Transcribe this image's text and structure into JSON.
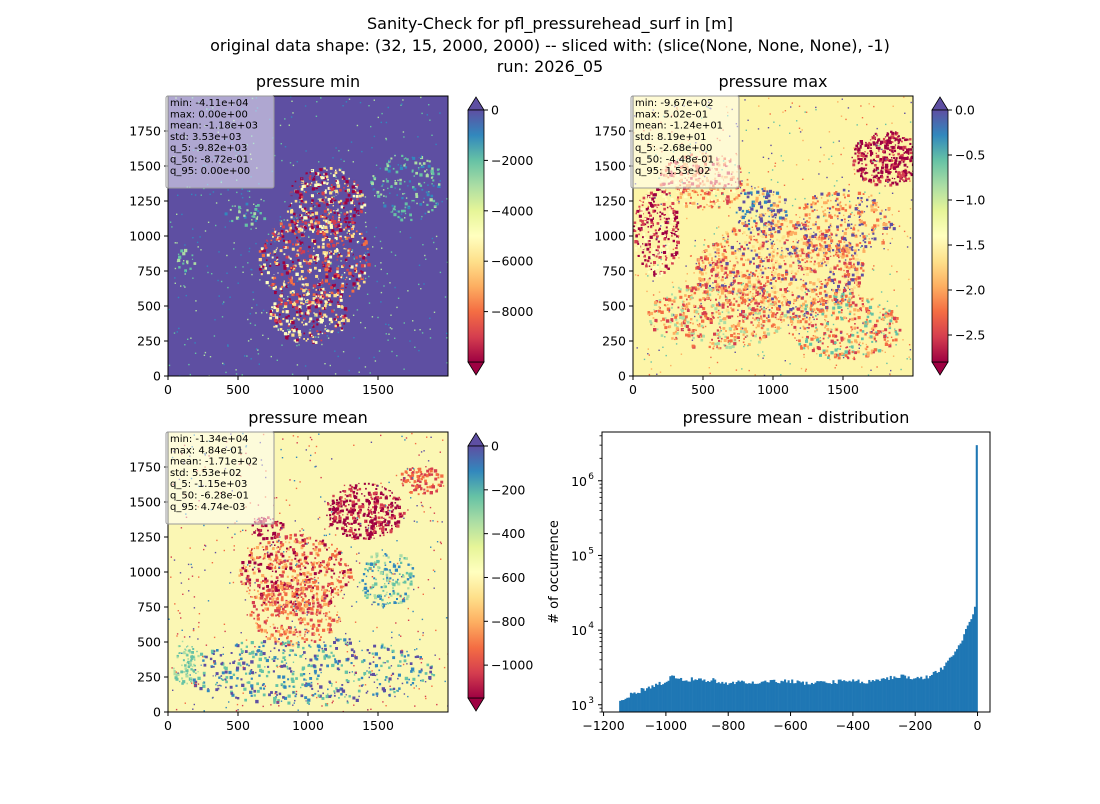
{
  "figure": {
    "title_lines": [
      "Sanity-Check for pfl_pressurehead_surf in [m]",
      "original data shape: (32, 15, 2000, 2000) -- sliced with: (slice(None, None, None), -1)",
      "run: 2026_05"
    ]
  },
  "chart_data": [
    {
      "type": "heatmap",
      "title": "pressure min",
      "xlim": [
        0,
        2000
      ],
      "ylim": [
        0,
        2000
      ],
      "xticks": [
        0,
        500,
        1000,
        1500
      ],
      "yticks": [
        0,
        250,
        500,
        750,
        1000,
        1250,
        1500,
        1750
      ],
      "colorbar": {
        "cmap": "Spectral",
        "range": [
          -10000,
          0
        ],
        "ticks": [
          0,
          -2000,
          -4000,
          -6000,
          -8000
        ],
        "ticklabels": [
          "0",
          "−2000",
          "−4000",
          "−6000",
          "−8000"
        ],
        "extend_top": true,
        "extend_bottom": true
      },
      "stats": [
        "min: -4.11e+04",
        "max: 0.00e+00",
        "mean: -1.18e+03",
        "std: 3.53e+03",
        "q_5: -9.82e+03",
        "q_50: -8.72e-01",
        "q_95: 0.00e+00"
      ],
      "background_color": "#5e4fa2"
    },
    {
      "type": "heatmap",
      "title": "pressure max",
      "xlim": [
        0,
        2000
      ],
      "ylim": [
        0,
        2000
      ],
      "xticks": [
        0,
        500,
        1000,
        1500
      ],
      "yticks": [
        0,
        250,
        500,
        750,
        1000,
        1250,
        1500,
        1750
      ],
      "colorbar": {
        "cmap": "Spectral",
        "range": [
          -2.8,
          0
        ],
        "ticks": [
          0.0,
          -0.5,
          -1.0,
          -1.5,
          -2.0,
          -2.5
        ],
        "ticklabels": [
          "0.0",
          "−0.5",
          "−1.0",
          "−1.5",
          "−2.0",
          "−2.5"
        ],
        "extend_top": true,
        "extend_bottom": true
      },
      "stats": [
        "min: -9.67e+02",
        "max: 5.02e-01",
        "mean: -1.24e+01",
        "std: 8.19e+01",
        "q_5: -2.68e+00",
        "q_50: -4.48e-01",
        "q_95: 1.53e-02"
      ],
      "background_color": "#fdf5a8"
    },
    {
      "type": "heatmap",
      "title": "pressure mean",
      "xlim": [
        0,
        2000
      ],
      "ylim": [
        0,
        2000
      ],
      "xticks": [
        0,
        500,
        1000,
        1500
      ],
      "yticks": [
        0,
        250,
        500,
        750,
        1000,
        1250,
        1500,
        1750
      ],
      "colorbar": {
        "cmap": "Spectral",
        "range": [
          -1150,
          0
        ],
        "ticks": [
          0,
          -200,
          -400,
          -600,
          -800,
          -1000
        ],
        "ticklabels": [
          "0",
          "−200",
          "−400",
          "−600",
          "−800",
          "−1000"
        ],
        "extend_top": true,
        "extend_bottom": true
      },
      "stats": [
        "min: -1.34e+04",
        "max: 4.84e-01",
        "mean: -1.71e+02",
        "std: 5.53e+02",
        "q_5: -1.15e+03",
        "q_50: -6.28e-01",
        "q_95: 4.74e-03"
      ],
      "background_color": "#fbf7b4"
    },
    {
      "type": "bar",
      "title": "pressure mean - distribution",
      "ylabel": "# of occurrence",
      "xlabel": "",
      "yscale": "log",
      "xlim": [
        -1205,
        40
      ],
      "ylim": [
        800,
        4500000
      ],
      "xticks": [
        -1200,
        -1000,
        -800,
        -600,
        -400,
        -200,
        0
      ],
      "xticklabels": [
        "−1200",
        "−1000",
        "−800",
        "−600",
        "−400",
        "−200",
        "0"
      ],
      "yticks": [
        1000,
        10000,
        100000,
        1000000
      ],
      "yticklabels": [
        "10",
        "10",
        "10",
        "10"
      ],
      "yticklabel_exponents": [
        "3",
        "4",
        "5",
        "6"
      ],
      "bar_color": "#1f77b4",
      "bin_range": [
        -1150,
        0
      ],
      "bin_width": 5.75,
      "profile": [
        [
          -1150,
          1150
        ],
        [
          -1100,
          1450
        ],
        [
          -1050,
          1750
        ],
        [
          -1000,
          2000
        ],
        [
          -980,
          2600
        ],
        [
          -960,
          2150
        ],
        [
          -900,
          2200
        ],
        [
          -850,
          2150
        ],
        [
          -800,
          1950
        ],
        [
          -750,
          2000
        ],
        [
          -700,
          2050
        ],
        [
          -650,
          2100
        ],
        [
          -600,
          2050
        ],
        [
          -550,
          1950
        ],
        [
          -500,
          1950
        ],
        [
          -450,
          2050
        ],
        [
          -400,
          2100
        ],
        [
          -350,
          2050
        ],
        [
          -300,
          2200
        ],
        [
          -250,
          2400
        ],
        [
          -200,
          2250
        ],
        [
          -160,
          2350
        ],
        [
          -120,
          2900
        ],
        [
          -90,
          4000
        ],
        [
          -60,
          6000
        ],
        [
          -40,
          9500
        ],
        [
          -20,
          15000
        ],
        [
          -6,
          22000
        ],
        [
          -3,
          60000
        ],
        [
          -1,
          3000000
        ]
      ]
    }
  ]
}
